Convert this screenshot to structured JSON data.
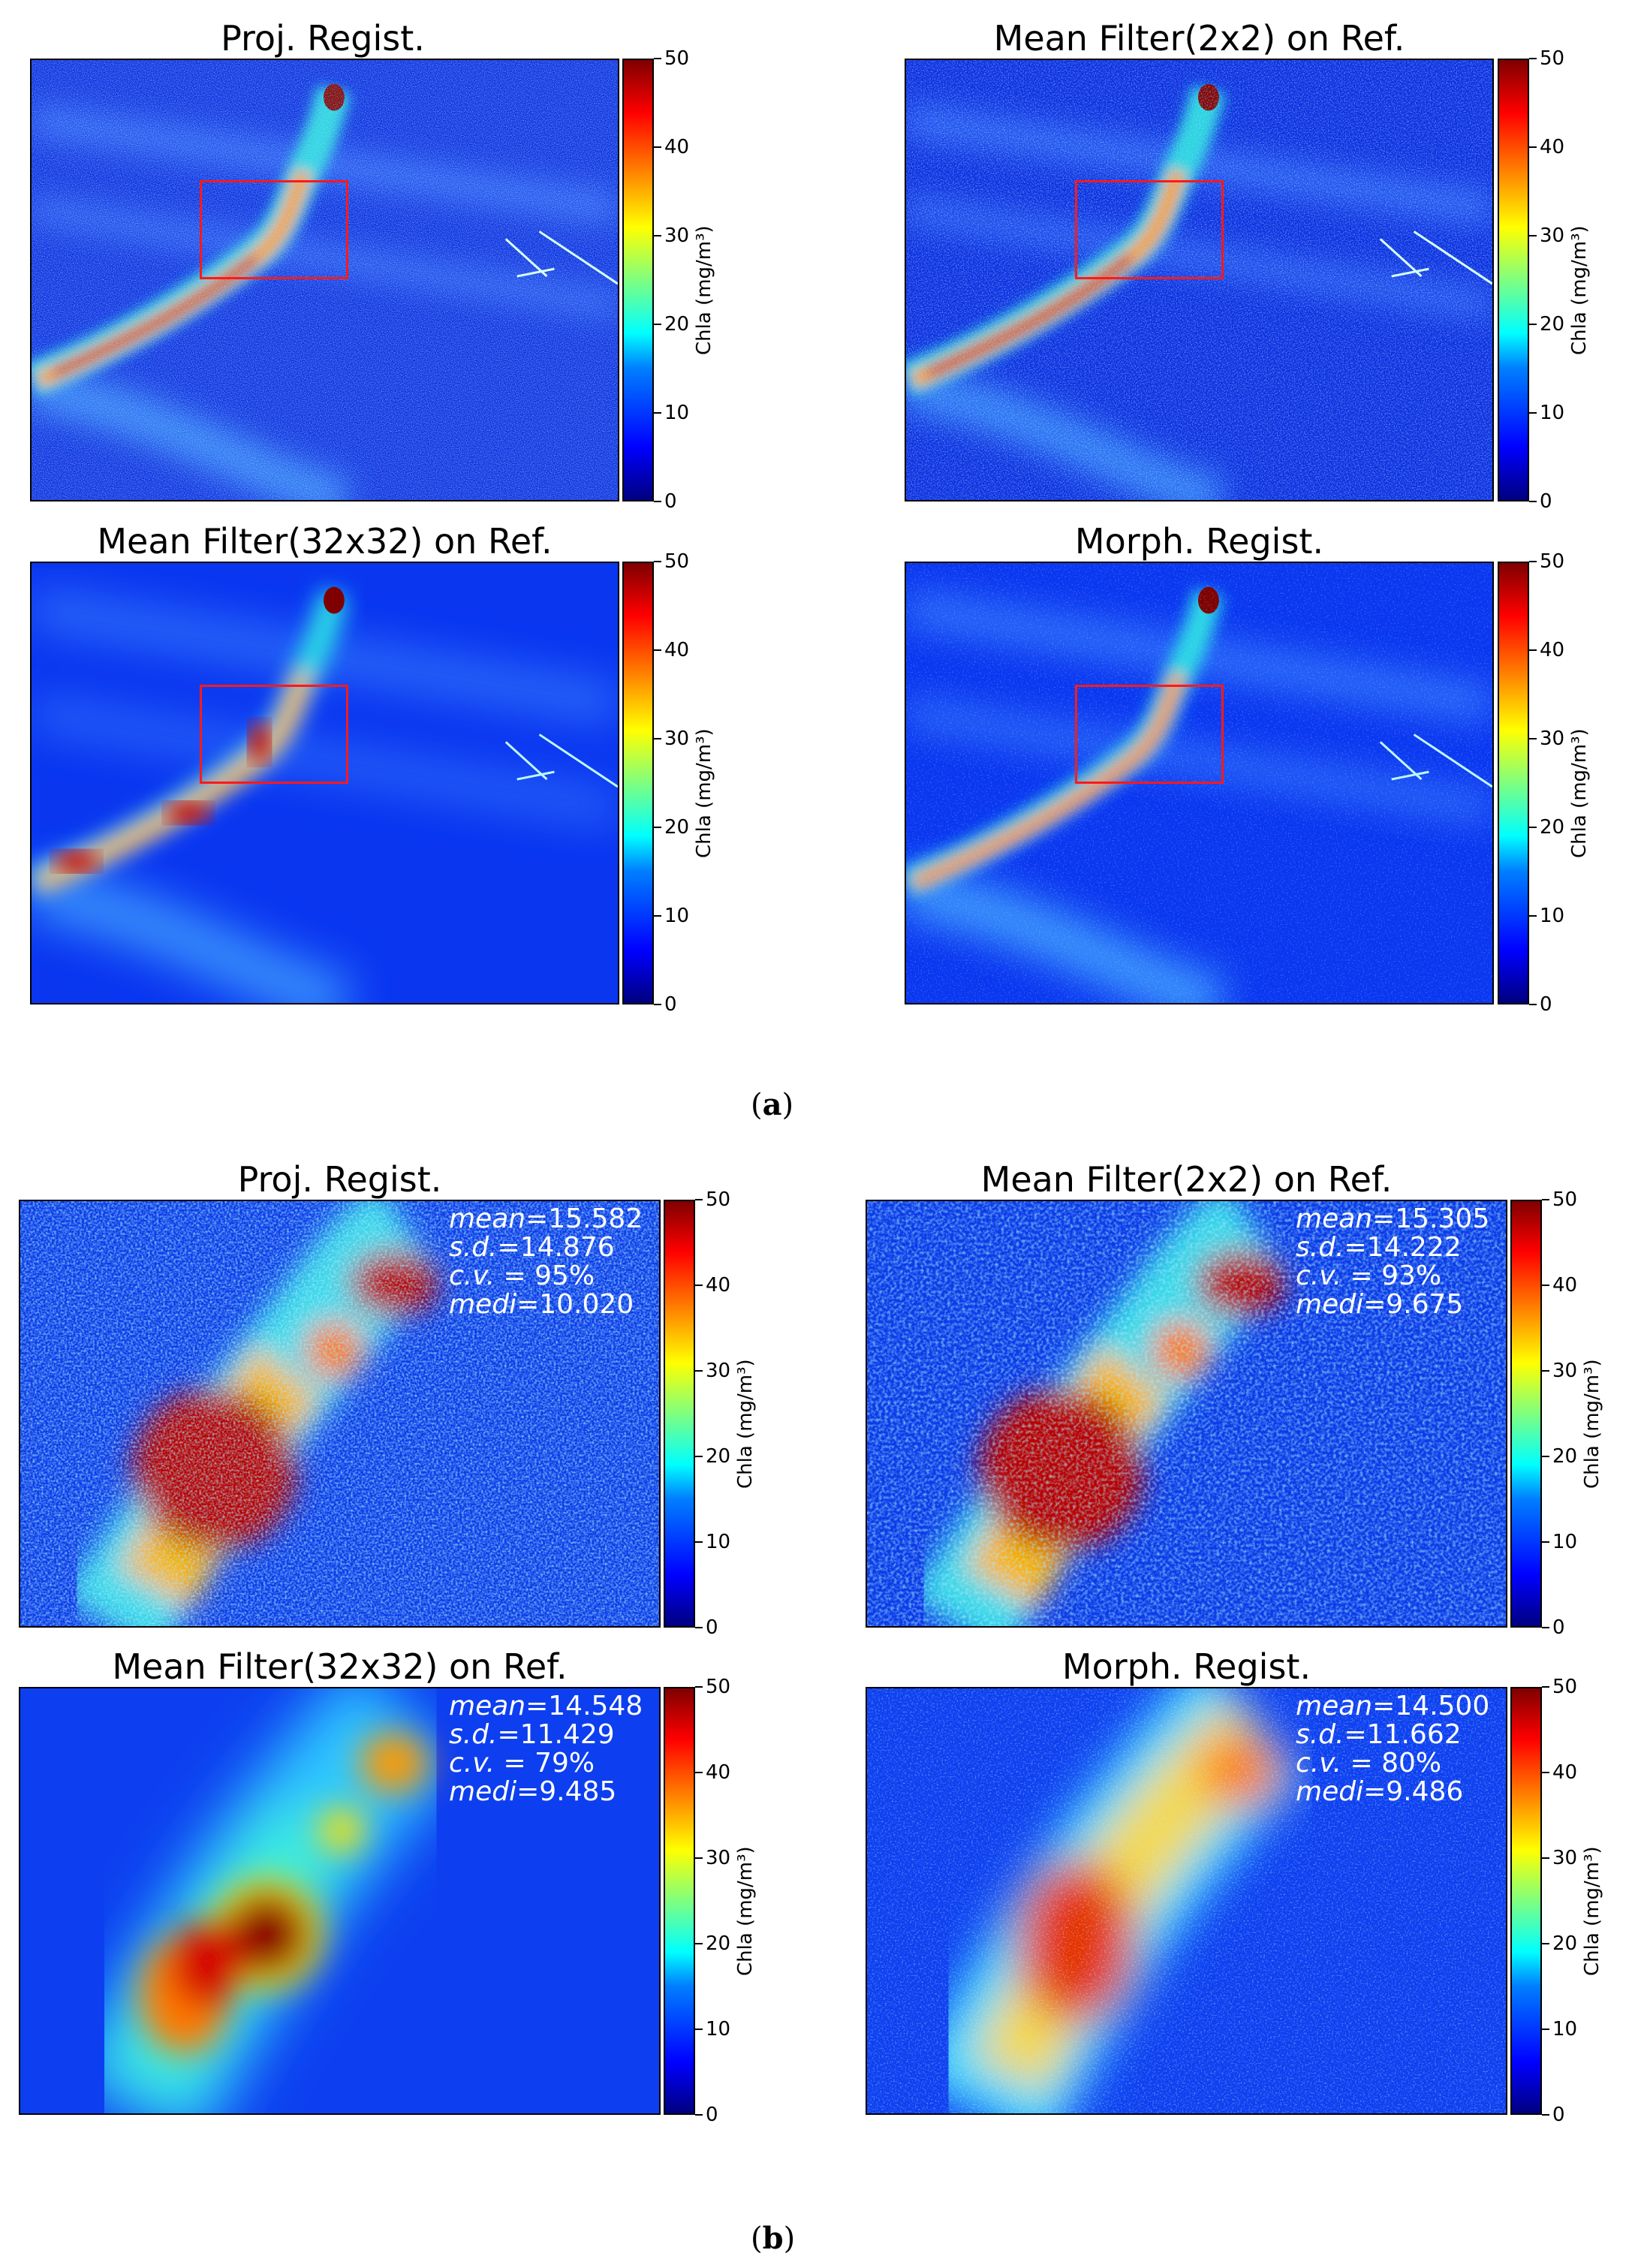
{
  "figure_a": {
    "caption_letter": "a",
    "panels": [
      {
        "title": "Proj. Regist."
      },
      {
        "title": "Mean Filter(2x2) on Ref."
      },
      {
        "title": "Mean Filter(32x32) on Ref."
      },
      {
        "title": "Morph. Regist."
      }
    ]
  },
  "figure_b": {
    "caption_letter": "b",
    "panels": [
      {
        "title": "Proj. Regist.",
        "mean": "=15.582",
        "sd": "=14.876",
        "cv": " = 95%",
        "medi": "=10.020"
      },
      {
        "title": "Mean Filter(2x2) on Ref.",
        "mean": "=15.305",
        "sd": "=14.222",
        "cv": " = 93%",
        "medi": "=9.675"
      },
      {
        "title": "Mean Filter(32x32) on Ref.",
        "mean": "=14.548",
        "sd": "=11.429",
        "cv": " = 79%",
        "medi": "=9.485"
      },
      {
        "title": "Morph. Regist.",
        "mean": "=14.500",
        "sd": "=11.662",
        "cv": " = 80%",
        "medi": "=9.486"
      }
    ]
  },
  "stat_keys": {
    "mean": "mean",
    "sd": "s.d.",
    "cv": "c.v.",
    "medi": "medi"
  },
  "colorbar": {
    "label": "Chla (mg/m³)",
    "ticks": [
      "50",
      "40",
      "30",
      "20",
      "10",
      "0"
    ],
    "colormap": "jet",
    "range": [
      0,
      50
    ]
  },
  "colors": {
    "roi_box": "#ff1a1a",
    "stats_text": "#ffffff"
  }
}
